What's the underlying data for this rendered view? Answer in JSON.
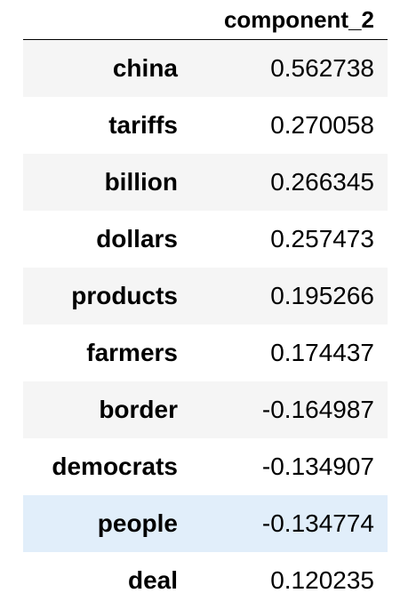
{
  "table": {
    "index_header": "",
    "column_header": "component_2",
    "rows": [
      {
        "term": "china",
        "value": "0.562738"
      },
      {
        "term": "tariffs",
        "value": "0.270058"
      },
      {
        "term": "billion",
        "value": "0.266345"
      },
      {
        "term": "dollars",
        "value": "0.257473"
      },
      {
        "term": "products",
        "value": "0.195266"
      },
      {
        "term": "farmers",
        "value": "0.174437"
      },
      {
        "term": "border",
        "value": "-0.164987"
      },
      {
        "term": "democrats",
        "value": "-0.134907"
      },
      {
        "term": "people",
        "value": "-0.134774"
      },
      {
        "term": "deal",
        "value": "0.120235"
      }
    ],
    "highlighted_row_index": 8,
    "colors": {
      "stripe": "#f5f5f5",
      "hover": "#e1eefa",
      "header_rule": "#000000"
    }
  }
}
